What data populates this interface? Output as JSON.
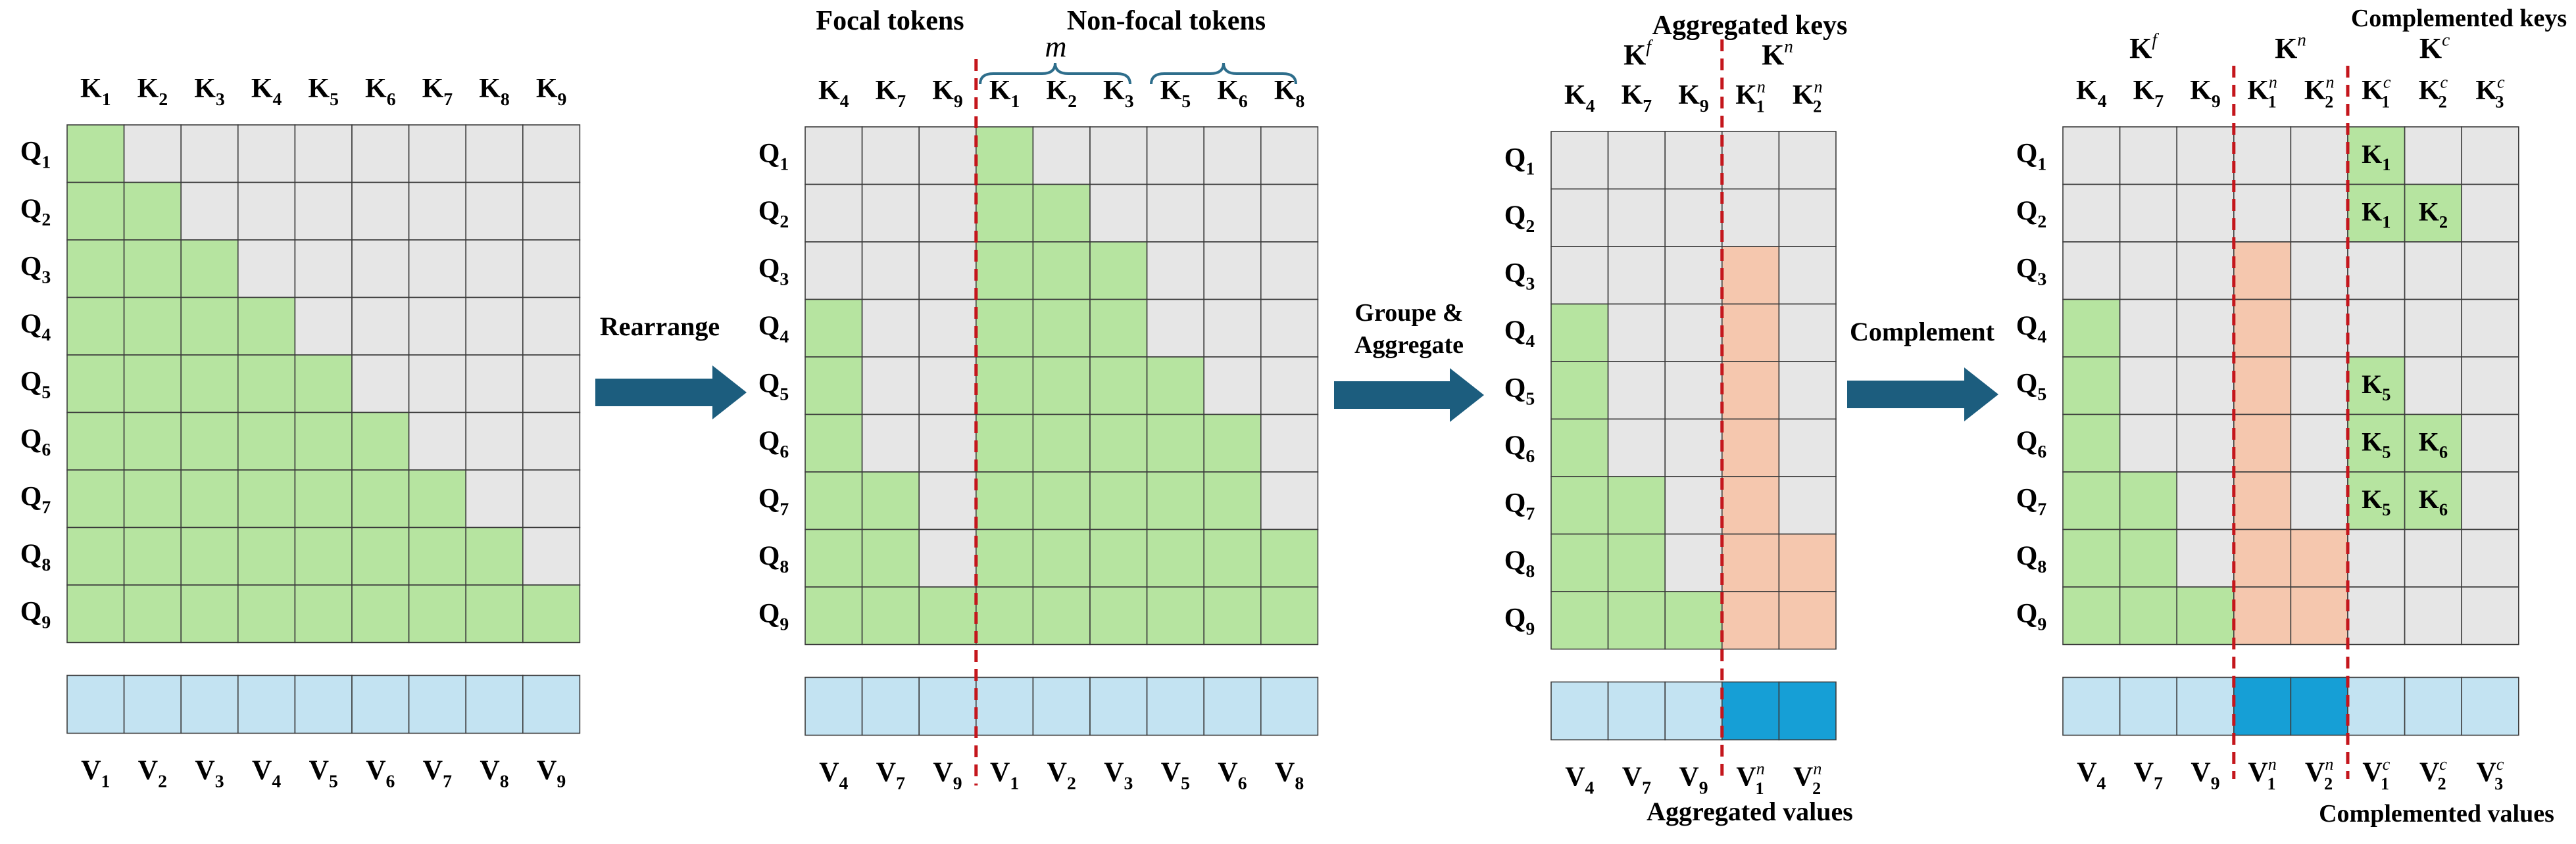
{
  "colors": {
    "mask_on": "#B6E4A0",
    "mask_off": "#E6E6E6",
    "aggregated_cell": "#F5C7AE",
    "value_cell": "#C3E3F2",
    "value_aggregated": "#169FD6",
    "arrow": "#1C5D7E",
    "divider": "#C4161C",
    "grid_line": "#3C3C3C",
    "brace": "#2E6E8C"
  },
  "panel1": {
    "name": "original",
    "columns": [
      "1",
      "2",
      "3",
      "4",
      "5",
      "6",
      "7",
      "8",
      "9"
    ],
    "values": [
      "1",
      "2",
      "3",
      "4",
      "5",
      "6",
      "7",
      "8",
      "9"
    ],
    "grid": [
      "100000000",
      "110000000",
      "111000000",
      "111100000",
      "111110000",
      "111111000",
      "111111100",
      "111111110",
      "111111111"
    ]
  },
  "panel2": {
    "name": "rearranged",
    "header_focal": "Focal tokens",
    "header_nonfocal": "Non-focal tokens",
    "brace_label": "m",
    "columns": [
      "4",
      "7",
      "9",
      "1",
      "2",
      "3",
      "5",
      "6",
      "8"
    ],
    "values": [
      "4",
      "7",
      "9",
      "1",
      "2",
      "3",
      "5",
      "6",
      "8"
    ],
    "grid": [
      "000100000",
      "000110000",
      "000111000",
      "100111000",
      "100111100",
      "100111110",
      "110111110",
      "110111111",
      "111111111"
    ]
  },
  "panel3": {
    "name": "aggregated",
    "header_keys": "Aggregated keys",
    "group_focal": "K",
    "group_focal_sup": "f",
    "group_nonfocal": "K",
    "group_nonfocal_sup": "n",
    "columns": [
      {
        "sub": "4",
        "sup": ""
      },
      {
        "sub": "7",
        "sup": ""
      },
      {
        "sub": "9",
        "sup": ""
      },
      {
        "sub": "1",
        "sup": "n"
      },
      {
        "sub": "2",
        "sup": "n"
      }
    ],
    "values": [
      {
        "sub": "4",
        "sup": ""
      },
      {
        "sub": "7",
        "sup": ""
      },
      {
        "sub": "9",
        "sup": ""
      },
      {
        "sub": "1",
        "sup": "n"
      },
      {
        "sub": "2",
        "sup": "n"
      }
    ],
    "value_states": [
      "v",
      "v",
      "v",
      "a",
      "a"
    ],
    "footer": "Aggregated values",
    "grid": [
      "00000",
      "00000",
      "000a0",
      "100a0",
      "100a0",
      "100a0",
      "110a0",
      "110aa",
      "111aa"
    ]
  },
  "panel4": {
    "name": "complemented",
    "header_keys": "Complemented keys",
    "group_focal": "K",
    "group_focal_sup": "f",
    "group_nonfocal": "K",
    "group_nonfocal_sup": "n",
    "group_comp": "K",
    "group_comp_sup": "c",
    "columns": [
      {
        "sub": "4",
        "sup": ""
      },
      {
        "sub": "7",
        "sup": ""
      },
      {
        "sub": "9",
        "sup": ""
      },
      {
        "sub": "1",
        "sup": "n"
      },
      {
        "sub": "2",
        "sup": "n"
      },
      {
        "sub": "1",
        "sup": "c"
      },
      {
        "sub": "2",
        "sup": "c"
      },
      {
        "sub": "3",
        "sup": "c"
      }
    ],
    "values": [
      {
        "sub": "4",
        "sup": ""
      },
      {
        "sub": "7",
        "sup": ""
      },
      {
        "sub": "9",
        "sup": ""
      },
      {
        "sub": "1",
        "sup": "n"
      },
      {
        "sub": "2",
        "sup": "n"
      },
      {
        "sub": "1",
        "sup": "c"
      },
      {
        "sub": "2",
        "sup": "c"
      },
      {
        "sub": "3",
        "sup": "c"
      }
    ],
    "value_states": [
      "v",
      "v",
      "v",
      "a",
      "a",
      "v",
      "v",
      "v"
    ],
    "footer": "Complemented values",
    "grid": [
      "00000100",
      "00000110",
      "000a0000",
      "100a0000",
      "100a0100",
      "100a0110",
      "110a0110",
      "110aa000",
      "111aa000"
    ],
    "cell_labels": [
      {
        "row": 0,
        "col": 5,
        "sub": "1"
      },
      {
        "row": 1,
        "col": 5,
        "sub": "1"
      },
      {
        "row": 1,
        "col": 6,
        "sub": "2"
      },
      {
        "row": 4,
        "col": 5,
        "sub": "5"
      },
      {
        "row": 5,
        "col": 5,
        "sub": "5"
      },
      {
        "row": 5,
        "col": 6,
        "sub": "6"
      },
      {
        "row": 6,
        "col": 5,
        "sub": "5"
      },
      {
        "row": 6,
        "col": 6,
        "sub": "6"
      }
    ]
  },
  "rows": [
    "1",
    "2",
    "3",
    "4",
    "5",
    "6",
    "7",
    "8",
    "9"
  ],
  "row_letter": "Q",
  "key_letter": "K",
  "value_letter": "V",
  "arrows": [
    {
      "label": "Rearrange"
    },
    {
      "label_lines": [
        "Groupe &",
        "Aggregate"
      ]
    },
    {
      "label": "Complement"
    }
  ]
}
